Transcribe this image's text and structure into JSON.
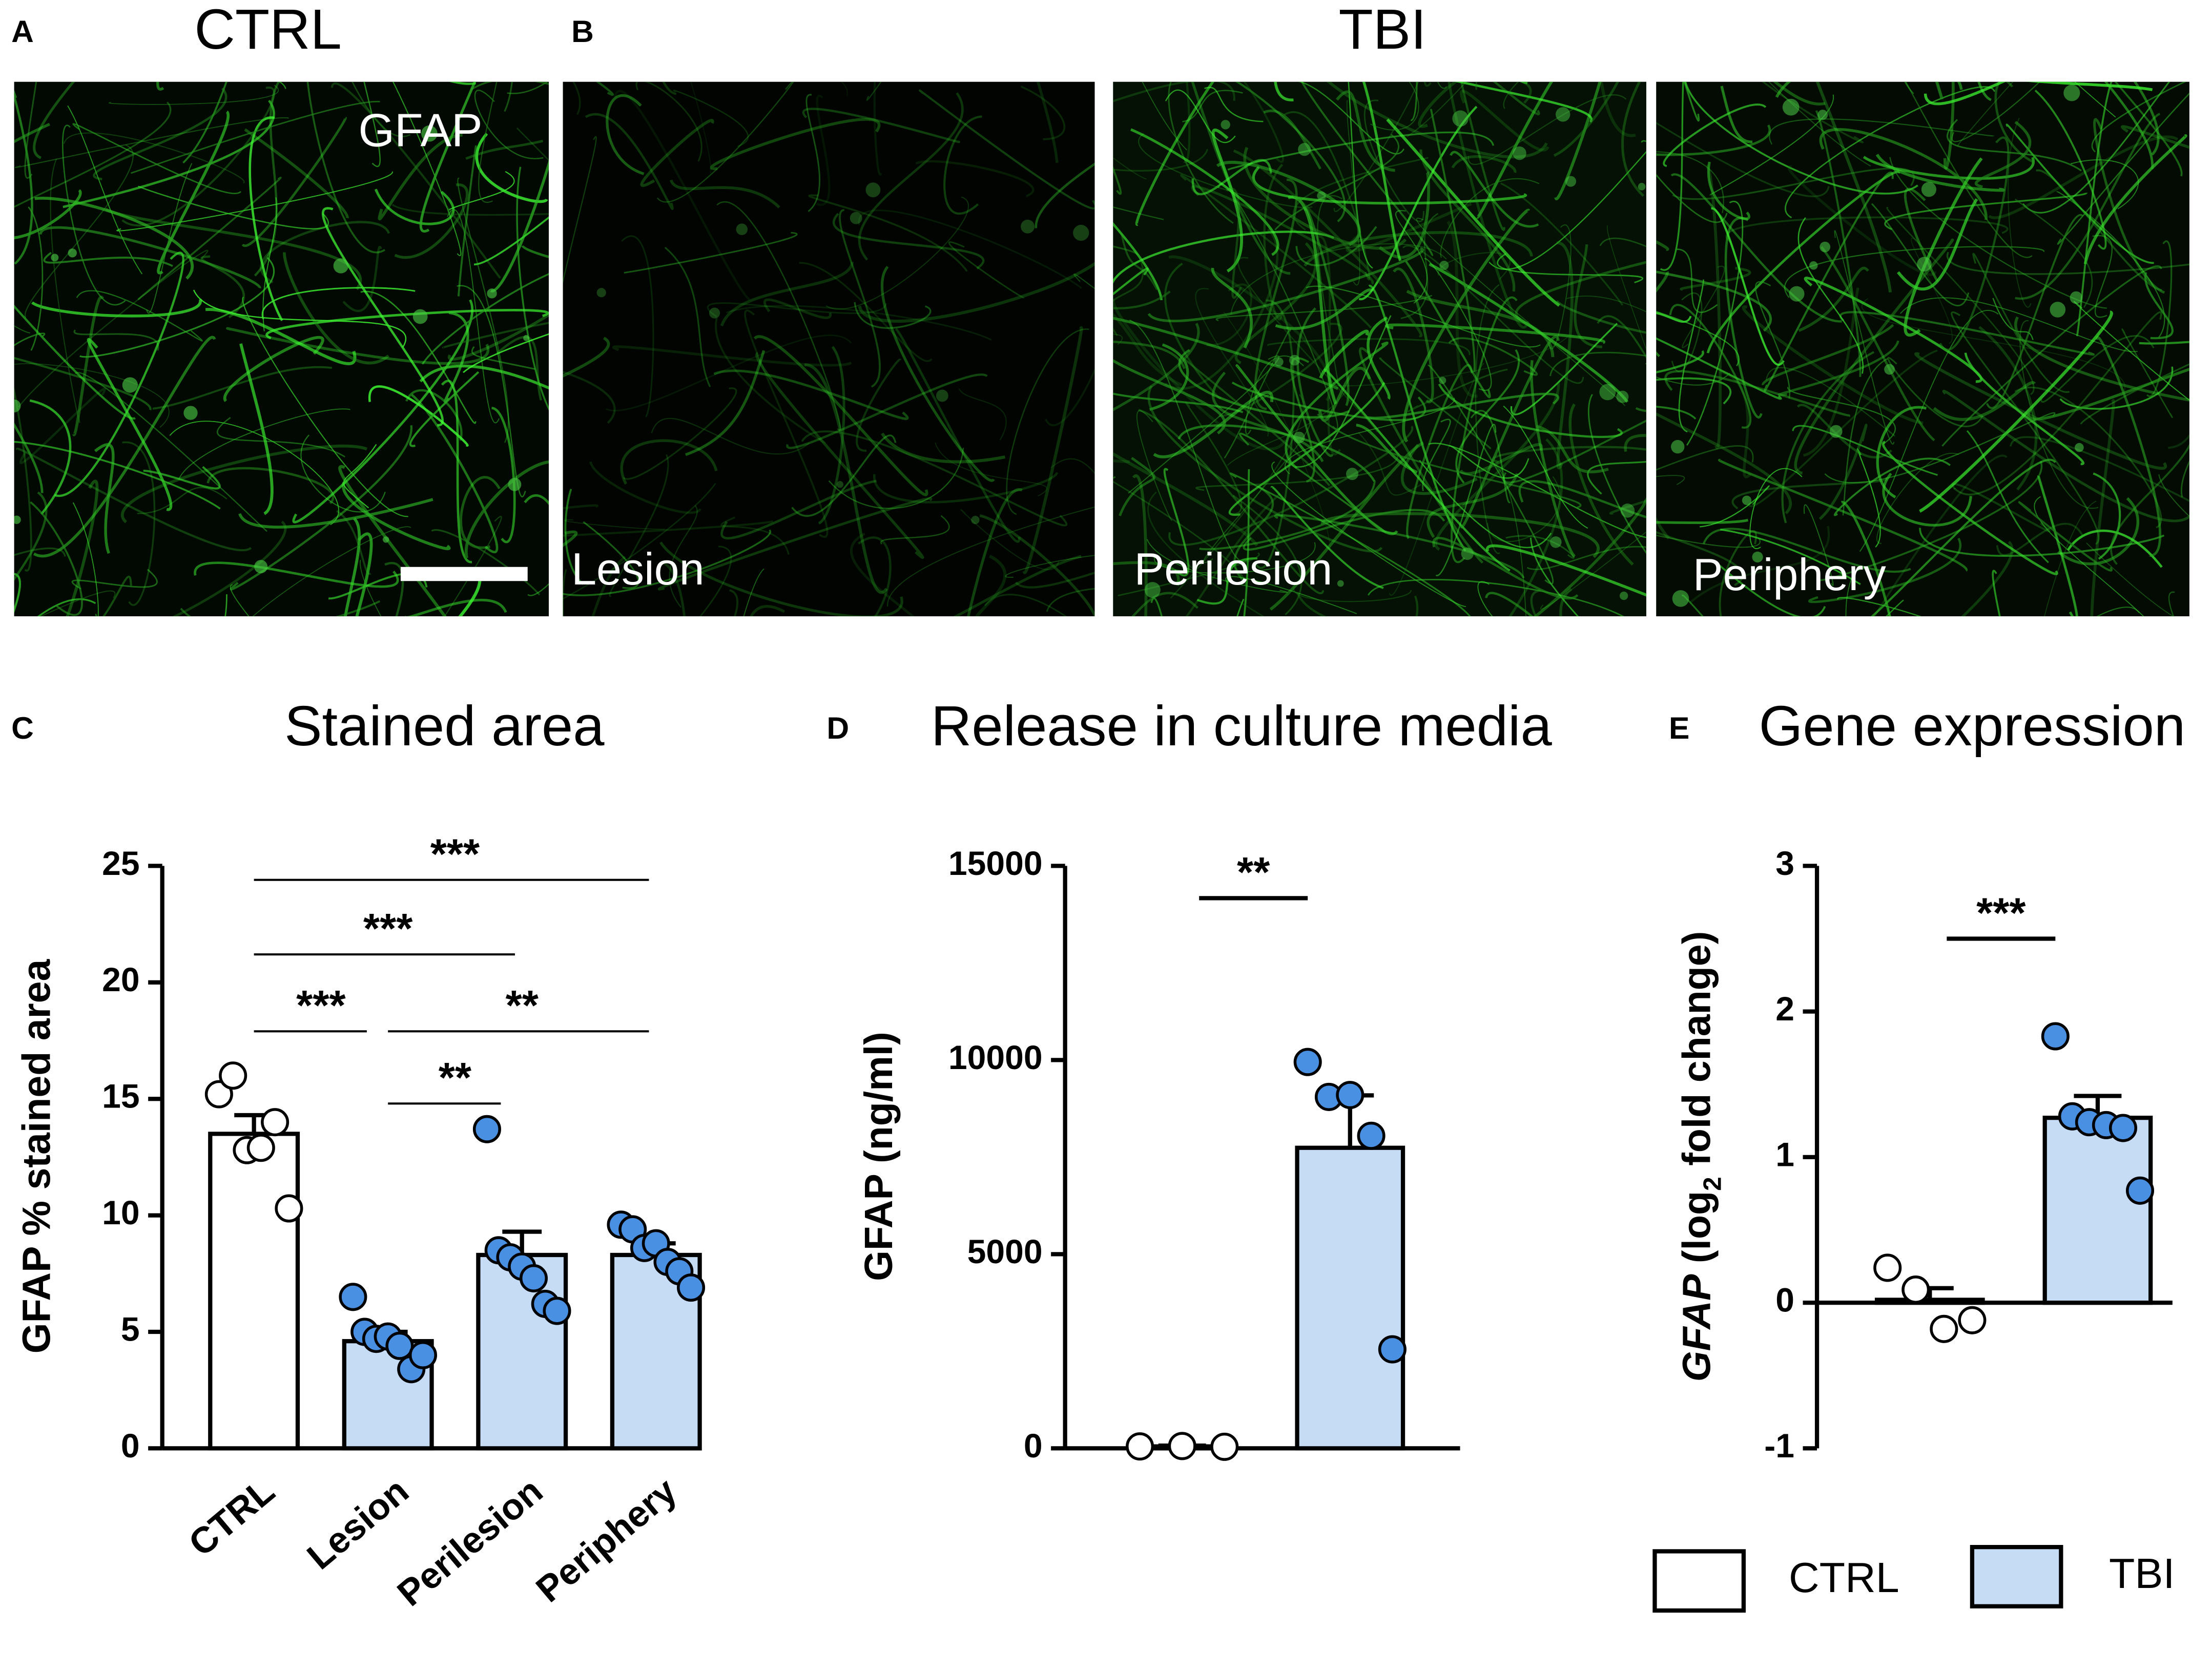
{
  "micrographs": {
    "panel_a": "A",
    "panel_b": "B",
    "ctrl_title": "CTRL",
    "tbi_title": "TBI",
    "stain": "GFAP",
    "regions": [
      "Lesion",
      "Perilesion",
      "Periphery"
    ]
  },
  "legend": [
    {
      "label": "CTRL",
      "color": "#ffffff"
    },
    {
      "label": "TBI",
      "color": "#c6dcf5"
    }
  ],
  "chart_data": [
    {
      "type": "bar",
      "panel": "C",
      "title": "Stained area",
      "y_label": "GFAP % stained area",
      "categories": [
        "CTRL",
        "Lesion",
        "Perilesion",
        "Periphery"
      ],
      "values": [
        13.5,
        4.6,
        8.3,
        8.3
      ],
      "errors": [
        0.8,
        0.4,
        1.0,
        0.5
      ],
      "bar_colors": [
        "#ffffff",
        "#c6dcf5",
        "#c6dcf5",
        "#c6dcf5"
      ],
      "point_colors": [
        "#ffffff",
        "#4a90e2",
        "#4a90e2",
        "#4a90e2"
      ],
      "points": [
        [
          15.2,
          16.0,
          12.8,
          12.9,
          14.0,
          10.3
        ],
        [
          6.5,
          5.0,
          4.7,
          4.8,
          4.4,
          3.4,
          4.0
        ],
        [
          13.7,
          8.5,
          8.2,
          7.8,
          7.3,
          6.2,
          5.9
        ],
        [
          9.6,
          9.4,
          8.6,
          8.8,
          8.0,
          7.6,
          6.9
        ]
      ],
      "ylim": [
        0,
        25
      ],
      "yticks": [
        0,
        5,
        10,
        15,
        20,
        25
      ],
      "significance": [
        {
          "from": 0,
          "to": 1,
          "y": 17.9,
          "label": "***"
        },
        {
          "from": 1,
          "to": 2,
          "y": 14.8,
          "label": "**"
        },
        {
          "from": 1,
          "to": 3,
          "y": 17.9,
          "label": "**"
        },
        {
          "from": 0,
          "to": 2,
          "y": 21.2,
          "label": "***"
        },
        {
          "from": 0,
          "to": 3,
          "y": 24.4,
          "label": "***"
        }
      ]
    },
    {
      "type": "bar",
      "panel": "D",
      "title": "Release in culture media",
      "y_label": "GFAP (ng/ml)",
      "categories": [
        null,
        null
      ],
      "values": [
        50,
        7740
      ],
      "errors": [
        20,
        1350
      ],
      "bar_colors": [
        "#ffffff",
        "#c6dcf5"
      ],
      "point_colors": [
        "#ffffff",
        "#4a90e2"
      ],
      "points": [
        [
          50,
          60,
          40
        ],
        [
          9950,
          9050,
          9100,
          8050,
          2550
        ]
      ],
      "ylim": [
        0,
        15000
      ],
      "yticks": [
        0,
        5000,
        10000,
        15000
      ],
      "significance": [
        {
          "from": 0,
          "to": 1,
          "y": 14170,
          "label": "**"
        }
      ]
    },
    {
      "type": "bar",
      "panel": "E",
      "title": "Gene expression",
      "y_label": [
        "GFAP",
        " (log",
        "2",
        " fold change)"
      ],
      "categories": [
        null,
        null
      ],
      "values": [
        0.02,
        1.27
      ],
      "errors": [
        0.08,
        0.15
      ],
      "bar_colors": [
        "#ffffff",
        "#c6dcf5"
      ],
      "point_colors": [
        "#ffffff",
        "#4a90e2"
      ],
      "points": [
        [
          0.24,
          0.09,
          -0.18,
          -0.12
        ],
        [
          1.83,
          1.28,
          1.24,
          1.22,
          1.2,
          0.77
        ]
      ],
      "ylim": [
        -1,
        3
      ],
      "yticks": [
        -1,
        0,
        1,
        2,
        3
      ],
      "significance": [
        {
          "from": 0,
          "to": 1,
          "y": 2.5,
          "label": "***"
        }
      ]
    }
  ]
}
